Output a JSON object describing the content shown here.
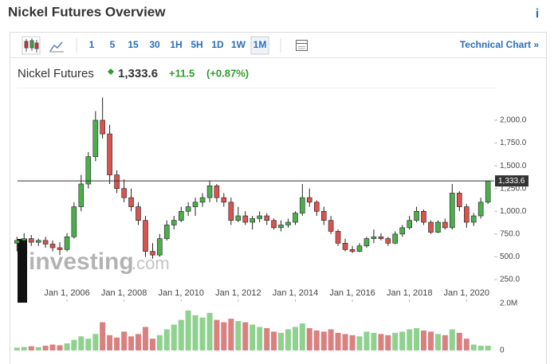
{
  "header": {
    "title": "Nickel Futures Overview",
    "info": "i",
    "name": "Nickel Futures",
    "price": "1,333.6",
    "change": "+11.5",
    "change_pct": "(+0.87%)"
  },
  "toolbar": {
    "intervals": [
      "1",
      "5",
      "15",
      "30",
      "1H",
      "5H",
      "1D",
      "1W",
      "1M"
    ],
    "active": "1M",
    "link": "Technical Chart »"
  },
  "watermark": {
    "brand": "investing",
    "suffix": ".com"
  },
  "chart_data": {
    "type": "candlestick",
    "x": [
      "2004-04-01",
      "2004-07-01",
      "2004-10-01",
      "2005-01-01",
      "2005-04-01",
      "2005-07-01",
      "2005-10-01",
      "2006-01-01",
      "2006-04-01",
      "2006-07-01",
      "2006-10-01",
      "2007-01-01",
      "2007-04-01",
      "2007-07-01",
      "2007-10-01",
      "2008-01-01",
      "2008-04-01",
      "2008-07-01",
      "2008-10-01",
      "2009-01-01",
      "2009-04-01",
      "2009-07-01",
      "2009-10-01",
      "2010-01-01",
      "2010-04-01",
      "2010-07-01",
      "2010-10-01",
      "2011-01-01",
      "2011-04-01",
      "2011-07-01",
      "2011-10-01",
      "2012-01-01",
      "2012-04-01",
      "2012-07-01",
      "2012-10-01",
      "2013-01-01",
      "2013-04-01",
      "2013-07-01",
      "2013-10-01",
      "2014-01-01",
      "2014-04-01",
      "2014-07-01",
      "2014-10-01",
      "2015-01-01",
      "2015-04-01",
      "2015-07-01",
      "2015-10-01",
      "2016-01-01",
      "2016-04-01",
      "2016-07-01",
      "2016-10-01",
      "2017-01-01",
      "2017-04-01",
      "2017-07-01",
      "2017-10-01",
      "2018-01-01",
      "2018-04-01",
      "2018-07-01",
      "2018-10-01",
      "2019-01-01",
      "2019-04-01",
      "2019-07-01",
      "2019-10-01",
      "2020-01-01",
      "2020-04-01",
      "2020-07-01",
      "2020-10-01"
    ],
    "open": [
      650,
      680,
      700,
      660,
      680,
      640,
      600,
      580,
      720,
      1050,
      1300,
      1600,
      2000,
      1850,
      1400,
      1250,
      1150,
      1050,
      900,
      560,
      520,
      700,
      850,
      900,
      1000,
      1050,
      1100,
      1150,
      1280,
      1150,
      1100,
      900,
      950,
      880,
      920,
      950,
      900,
      820,
      850,
      880,
      980,
      1150,
      1100,
      1000,
      900,
      780,
      650,
      580,
      560,
      620,
      700,
      720,
      700,
      650,
      750,
      820,
      900,
      1000,
      880,
      770,
      880,
      820,
      1200,
      1050,
      880,
      950,
      1100
    ],
    "high": [
      720,
      760,
      740,
      700,
      720,
      680,
      660,
      760,
      1100,
      1400,
      1650,
      2100,
      2250,
      1950,
      1450,
      1350,
      1250,
      1100,
      950,
      650,
      750,
      900,
      950,
      1050,
      1100,
      1150,
      1200,
      1340,
      1300,
      1200,
      1150,
      1050,
      1000,
      950,
      1000,
      980,
      920,
      900,
      920,
      1000,
      1300,
      1250,
      1120,
      1050,
      950,
      800,
      700,
      620,
      650,
      720,
      800,
      760,
      720,
      780,
      850,
      950,
      1050,
      1020,
      900,
      900,
      920,
      1300,
      1220,
      1080,
      980,
      1150,
      1340
    ],
    "low": [
      560,
      640,
      620,
      620,
      600,
      560,
      520,
      560,
      700,
      1000,
      1250,
      1550,
      1800,
      1300,
      1200,
      1100,
      1000,
      850,
      500,
      480,
      500,
      680,
      800,
      880,
      950,
      950,
      1050,
      1100,
      1100,
      1050,
      850,
      880,
      850,
      800,
      880,
      850,
      800,
      780,
      820,
      850,
      950,
      1050,
      950,
      850,
      750,
      620,
      560,
      540,
      550,
      600,
      650,
      680,
      620,
      640,
      720,
      800,
      880,
      850,
      750,
      760,
      800,
      800,
      1000,
      820,
      840,
      920,
      1080
    ],
    "close": [
      680,
      700,
      660,
      680,
      640,
      600,
      580,
      720,
      1050,
      1300,
      1600,
      2000,
      1850,
      1400,
      1250,
      1150,
      1050,
      900,
      560,
      520,
      700,
      850,
      900,
      1000,
      1050,
      1100,
      1150,
      1280,
      1150,
      1100,
      900,
      950,
      880,
      920,
      950,
      900,
      820,
      850,
      880,
      980,
      1150,
      1100,
      1000,
      900,
      780,
      650,
      580,
      560,
      620,
      700,
      720,
      700,
      650,
      750,
      820,
      900,
      1000,
      880,
      770,
      880,
      820,
      1200,
      1050,
      880,
      950,
      1100,
      1333.6
    ],
    "volume": [
      120000,
      150000,
      180000,
      140000,
      200000,
      250000,
      220000,
      300000,
      450000,
      600000,
      500000,
      700000,
      1200000,
      650000,
      550000,
      800000,
      600000,
      700000,
      1000000,
      500000,
      650000,
      900000,
      1100000,
      1300000,
      1700000,
      1500000,
      1400000,
      1600000,
      1300000,
      1200000,
      1350000,
      1250000,
      1200000,
      1100000,
      1000000,
      950000,
      800000,
      750000,
      900000,
      1000000,
      1150000,
      950000,
      850000,
      800000,
      900000,
      750000,
      700000,
      650000,
      600000,
      800000,
      750000,
      700000,
      650000,
      750000,
      800000,
      900000,
      950000,
      850000,
      800000,
      700000,
      650000,
      900000,
      750000,
      500000,
      250000,
      200000,
      200000
    ],
    "up_color": "#4cae4c",
    "down_color": "#d9534f",
    "up_volume_color": "#8fd18f",
    "down_volume_color": "#d98080",
    "xlim": [
      "2004-04-08",
      "2020-12-20"
    ],
    "xticks": [
      {
        "value": "2006-01-01",
        "label": "Jan 1, 2006"
      },
      {
        "value": "2008-01-01",
        "label": "Jan 1, 2008"
      },
      {
        "value": "2010-01-01",
        "label": "Jan 1, 2010"
      },
      {
        "value": "2012-01-01",
        "label": "Jan 1, 2012"
      },
      {
        "value": "2014-01-01",
        "label": "Jan 1, 2014"
      },
      {
        "value": "2016-01-01",
        "label": "Jan 1, 2016"
      },
      {
        "value": "2018-01-01",
        "label": "Jan 1, 2018"
      },
      {
        "value": "2020-01-01",
        "label": "Jan 1, 2020"
      }
    ],
    "ylim": [
      14,
      2341
    ],
    "yticks": [
      {
        "value": 250,
        "label": "250.0"
      },
      {
        "value": 500,
        "label": "500.0"
      },
      {
        "value": 750,
        "label": "750.0"
      },
      {
        "value": 1000,
        "label": "1,000.0"
      },
      {
        "value": 1250,
        "label": "1,250.0"
      },
      {
        "value": 1500,
        "label": "1,500.0"
      },
      {
        "value": 1750,
        "label": "1,750.0"
      },
      {
        "value": 2000,
        "label": "2,000.0"
      }
    ],
    "last": {
      "value": 1333.6,
      "label": "1,333.6"
    },
    "vlim": [
      0,
      2100000
    ],
    "vticks": [
      0,
      {
        "value": 2000000,
        "label": "2.0M"
      }
    ]
  }
}
